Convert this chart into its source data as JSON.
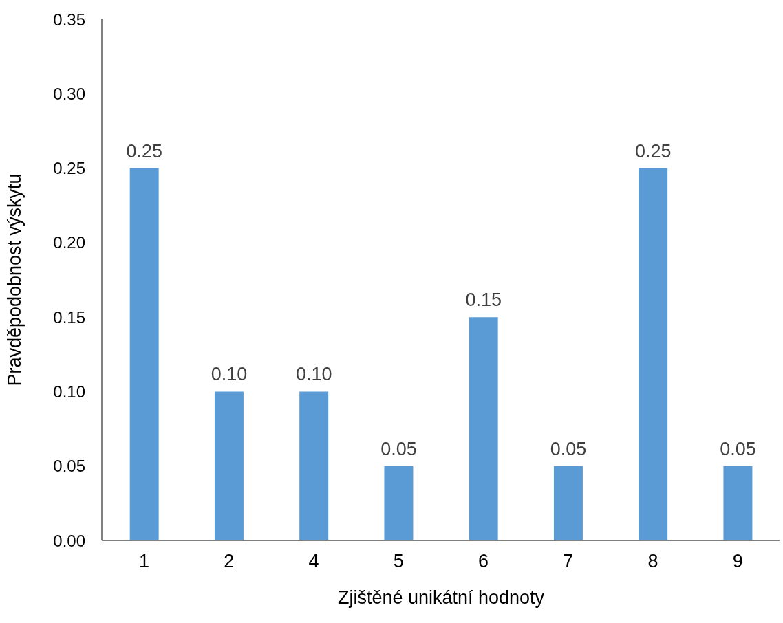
{
  "chart_data": {
    "type": "bar",
    "xlabel": "Zjištěné unikátní hodnoty",
    "ylabel": "Pravděpodobnost výskytu",
    "categories": [
      "1",
      "2",
      "4",
      "5",
      "6",
      "7",
      "8",
      "9"
    ],
    "values": [
      0.25,
      0.1,
      0.1,
      0.05,
      0.15,
      0.05,
      0.25,
      0.05
    ],
    "value_labels": [
      "0.25",
      "0.10",
      "0.10",
      "0.05",
      "0.15",
      "0.05",
      "0.25",
      "0.05"
    ],
    "color": "#5b9bd5",
    "ylim": [
      0,
      0.35
    ],
    "yticks": [
      {
        "value": 0,
        "label": "0.00"
      },
      {
        "value": 0.05,
        "label": "0.05"
      },
      {
        "value": 0.1,
        "label": "0.10"
      },
      {
        "value": 0.15,
        "label": "0.15"
      },
      {
        "value": 0.2,
        "label": "0.20"
      },
      {
        "value": 0.25,
        "label": "0.25"
      },
      {
        "value": 0.3,
        "label": "0.30"
      },
      {
        "value": 0.35,
        "label": "0.35"
      }
    ],
    "grid": false,
    "legend": false
  }
}
